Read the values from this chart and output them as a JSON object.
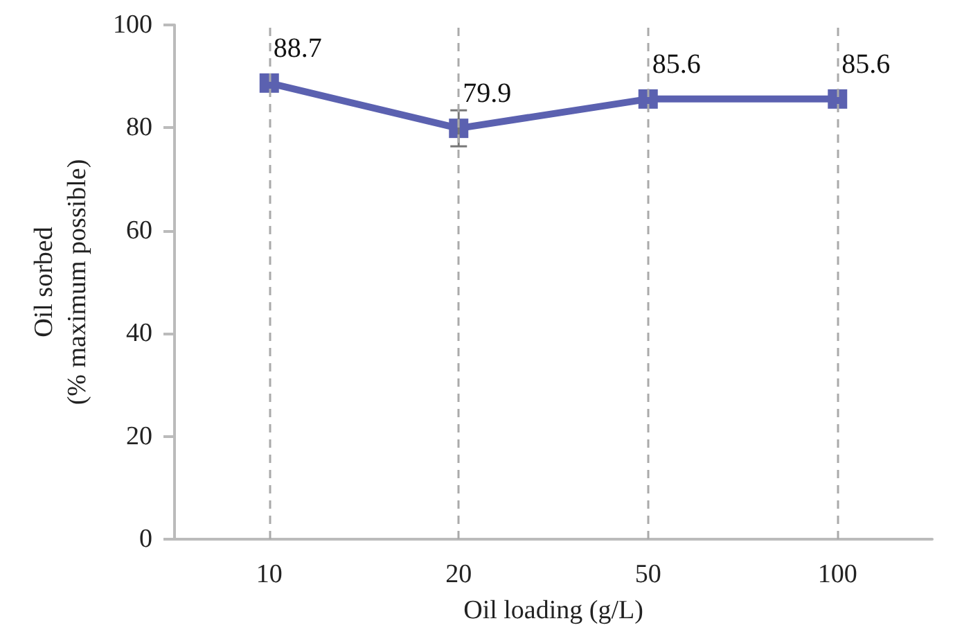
{
  "chart_data": {
    "type": "line",
    "xlabel": "Oil loading (g/L)",
    "ylabel": "Oil sorbed\n(% maximum possible)",
    "categories": [
      "10",
      "20",
      "50",
      "100"
    ],
    "series": [
      {
        "color": "#5b61b0",
        "values": [
          88.7,
          79.9,
          85.6,
          85.6
        ],
        "errors": [
          null,
          3.5,
          null,
          null
        ]
      }
    ],
    "ylim": [
      0,
      100
    ],
    "yticks": [
      0,
      20,
      40,
      60,
      80,
      100
    ],
    "grid": "x",
    "marker": "square",
    "line_style": "solid",
    "data_labels": true
  }
}
